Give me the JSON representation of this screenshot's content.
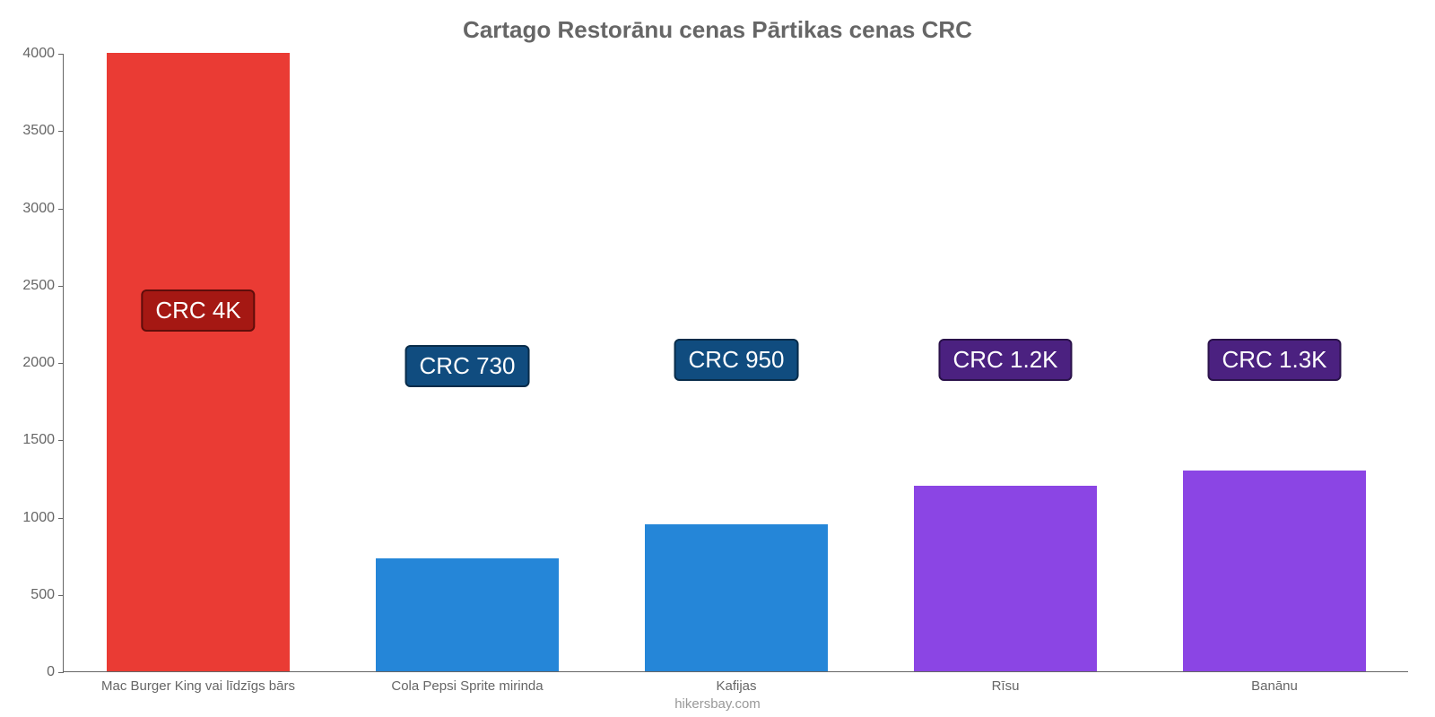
{
  "chart": {
    "type": "bar",
    "title": "Cartago Restorānu cenas Pārtikas cenas CRC",
    "title_fontsize": 26,
    "title_color": "#666666",
    "background_color": "#ffffff",
    "axis_color": "#666666",
    "tick_label_color": "#666666",
    "tick_label_fontsize": 16,
    "xlabel_fontsize": 15,
    "ylim": [
      0,
      4000
    ],
    "yticks": [
      0,
      500,
      1000,
      1500,
      2000,
      2500,
      3000,
      3500,
      4000
    ],
    "bar_width_ratio": 0.68,
    "categories": [
      "Mac Burger King vai līdzīgs bārs",
      "Cola Pepsi Sprite mirinda",
      "Kafijas",
      "Rīsu",
      "Banānu"
    ],
    "values": [
      4000,
      730,
      950,
      1200,
      1300
    ],
    "value_labels": [
      "CRC 4K",
      "CRC 730",
      "CRC 950",
      "CRC 1.2K",
      "CRC 1.3K"
    ],
    "bar_colors": [
      "#ea3b34",
      "#2586d8",
      "#2586d8",
      "#8b45e4",
      "#8b45e4"
    ],
    "badge_colors": [
      "#a51813",
      "#104c7f",
      "#104c7f",
      "#4b2180",
      "#4b2180"
    ],
    "badge_border_colors": [
      "#5f0d0a",
      "#082c4a",
      "#082c4a",
      "#2a124a",
      "#2a124a"
    ],
    "badge_fontsize": 26,
    "badge_text_color": "#ffffff",
    "value_badge_offsets": [
      0.55,
      0.46,
      0.47,
      0.47,
      0.47
    ],
    "footer": "hikersbay.com",
    "footer_color": "#999999",
    "footer_fontsize": 15
  }
}
